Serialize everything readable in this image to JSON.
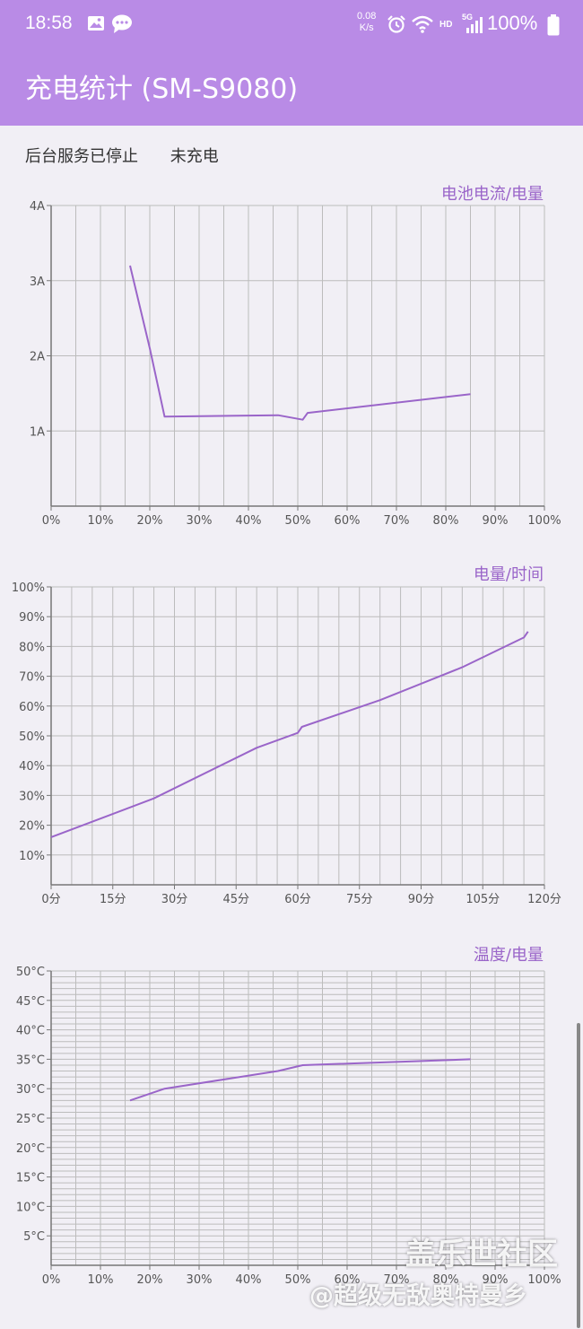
{
  "statusbar": {
    "time": "18:58",
    "net_speed_value": "0.08",
    "net_speed_unit": "K/s",
    "network_label_hd": "HD",
    "network_label_5g": "5G",
    "battery": "100%"
  },
  "app": {
    "title": "充电统计 (SM-S9080)"
  },
  "status": {
    "service": "后台服务已停止",
    "charging": "未充电"
  },
  "watermark": {
    "line1": "盖乐世社区",
    "line2": "@超级无敌奥特曼乡"
  },
  "colors": {
    "accent": "#b98be6",
    "line": "#9a65c9",
    "grid": "#bcbcbc",
    "axis": "#777777"
  },
  "chart_data": [
    {
      "type": "line",
      "title": "电池电流/电量",
      "x_ticks": [
        "0%",
        "10%",
        "20%",
        "30%",
        "40%",
        "50%",
        "60%",
        "70%",
        "80%",
        "90%",
        "100%"
      ],
      "y_ticks": [
        "1A",
        "2A",
        "3A",
        "4A"
      ],
      "xlim": [
        0,
        100
      ],
      "ylim": [
        0,
        4
      ],
      "grid": "vertical every 5, horizontal every 1",
      "series": [
        {
          "x": [
            16,
            20,
            23,
            46,
            51,
            52,
            85
          ],
          "y": [
            3.2,
            2.1,
            1.19,
            1.21,
            1.15,
            1.24,
            1.49
          ]
        }
      ]
    },
    {
      "type": "line",
      "title": "电量/时间",
      "x_ticks": [
        "0分",
        "15分",
        "30分",
        "45分",
        "60分",
        "75分",
        "90分",
        "105分",
        "120分"
      ],
      "y_ticks": [
        "10%",
        "20%",
        "30%",
        "40%",
        "50%",
        "60%",
        "70%",
        "80%",
        "90%",
        "100%"
      ],
      "xlim": [
        0,
        120
      ],
      "ylim": [
        0,
        100
      ],
      "grid": "vertical every 5, horizontal every 10",
      "series": [
        {
          "x": [
            0,
            25,
            50,
            60,
            61,
            80,
            100,
            115,
            116
          ],
          "y": [
            16,
            29,
            46,
            51,
            53,
            62,
            73,
            83,
            85
          ]
        }
      ]
    },
    {
      "type": "line",
      "title": "温度/电量",
      "x_ticks": [
        "0%",
        "10%",
        "20%",
        "30%",
        "40%",
        "50%",
        "60%",
        "70%",
        "80%",
        "90%",
        "100%"
      ],
      "y_ticks": [
        "5°C",
        "10°C",
        "15°C",
        "20°C",
        "25°C",
        "30°C",
        "35°C",
        "40°C",
        "45°C",
        "50°C"
      ],
      "xlim": [
        0,
        100
      ],
      "ylim": [
        0,
        50
      ],
      "grid": "vertical every 5, horizontal every 1",
      "series": [
        {
          "x": [
            16,
            23,
            46,
            51,
            85
          ],
          "y": [
            28,
            30,
            33,
            34,
            35
          ]
        }
      ]
    }
  ]
}
